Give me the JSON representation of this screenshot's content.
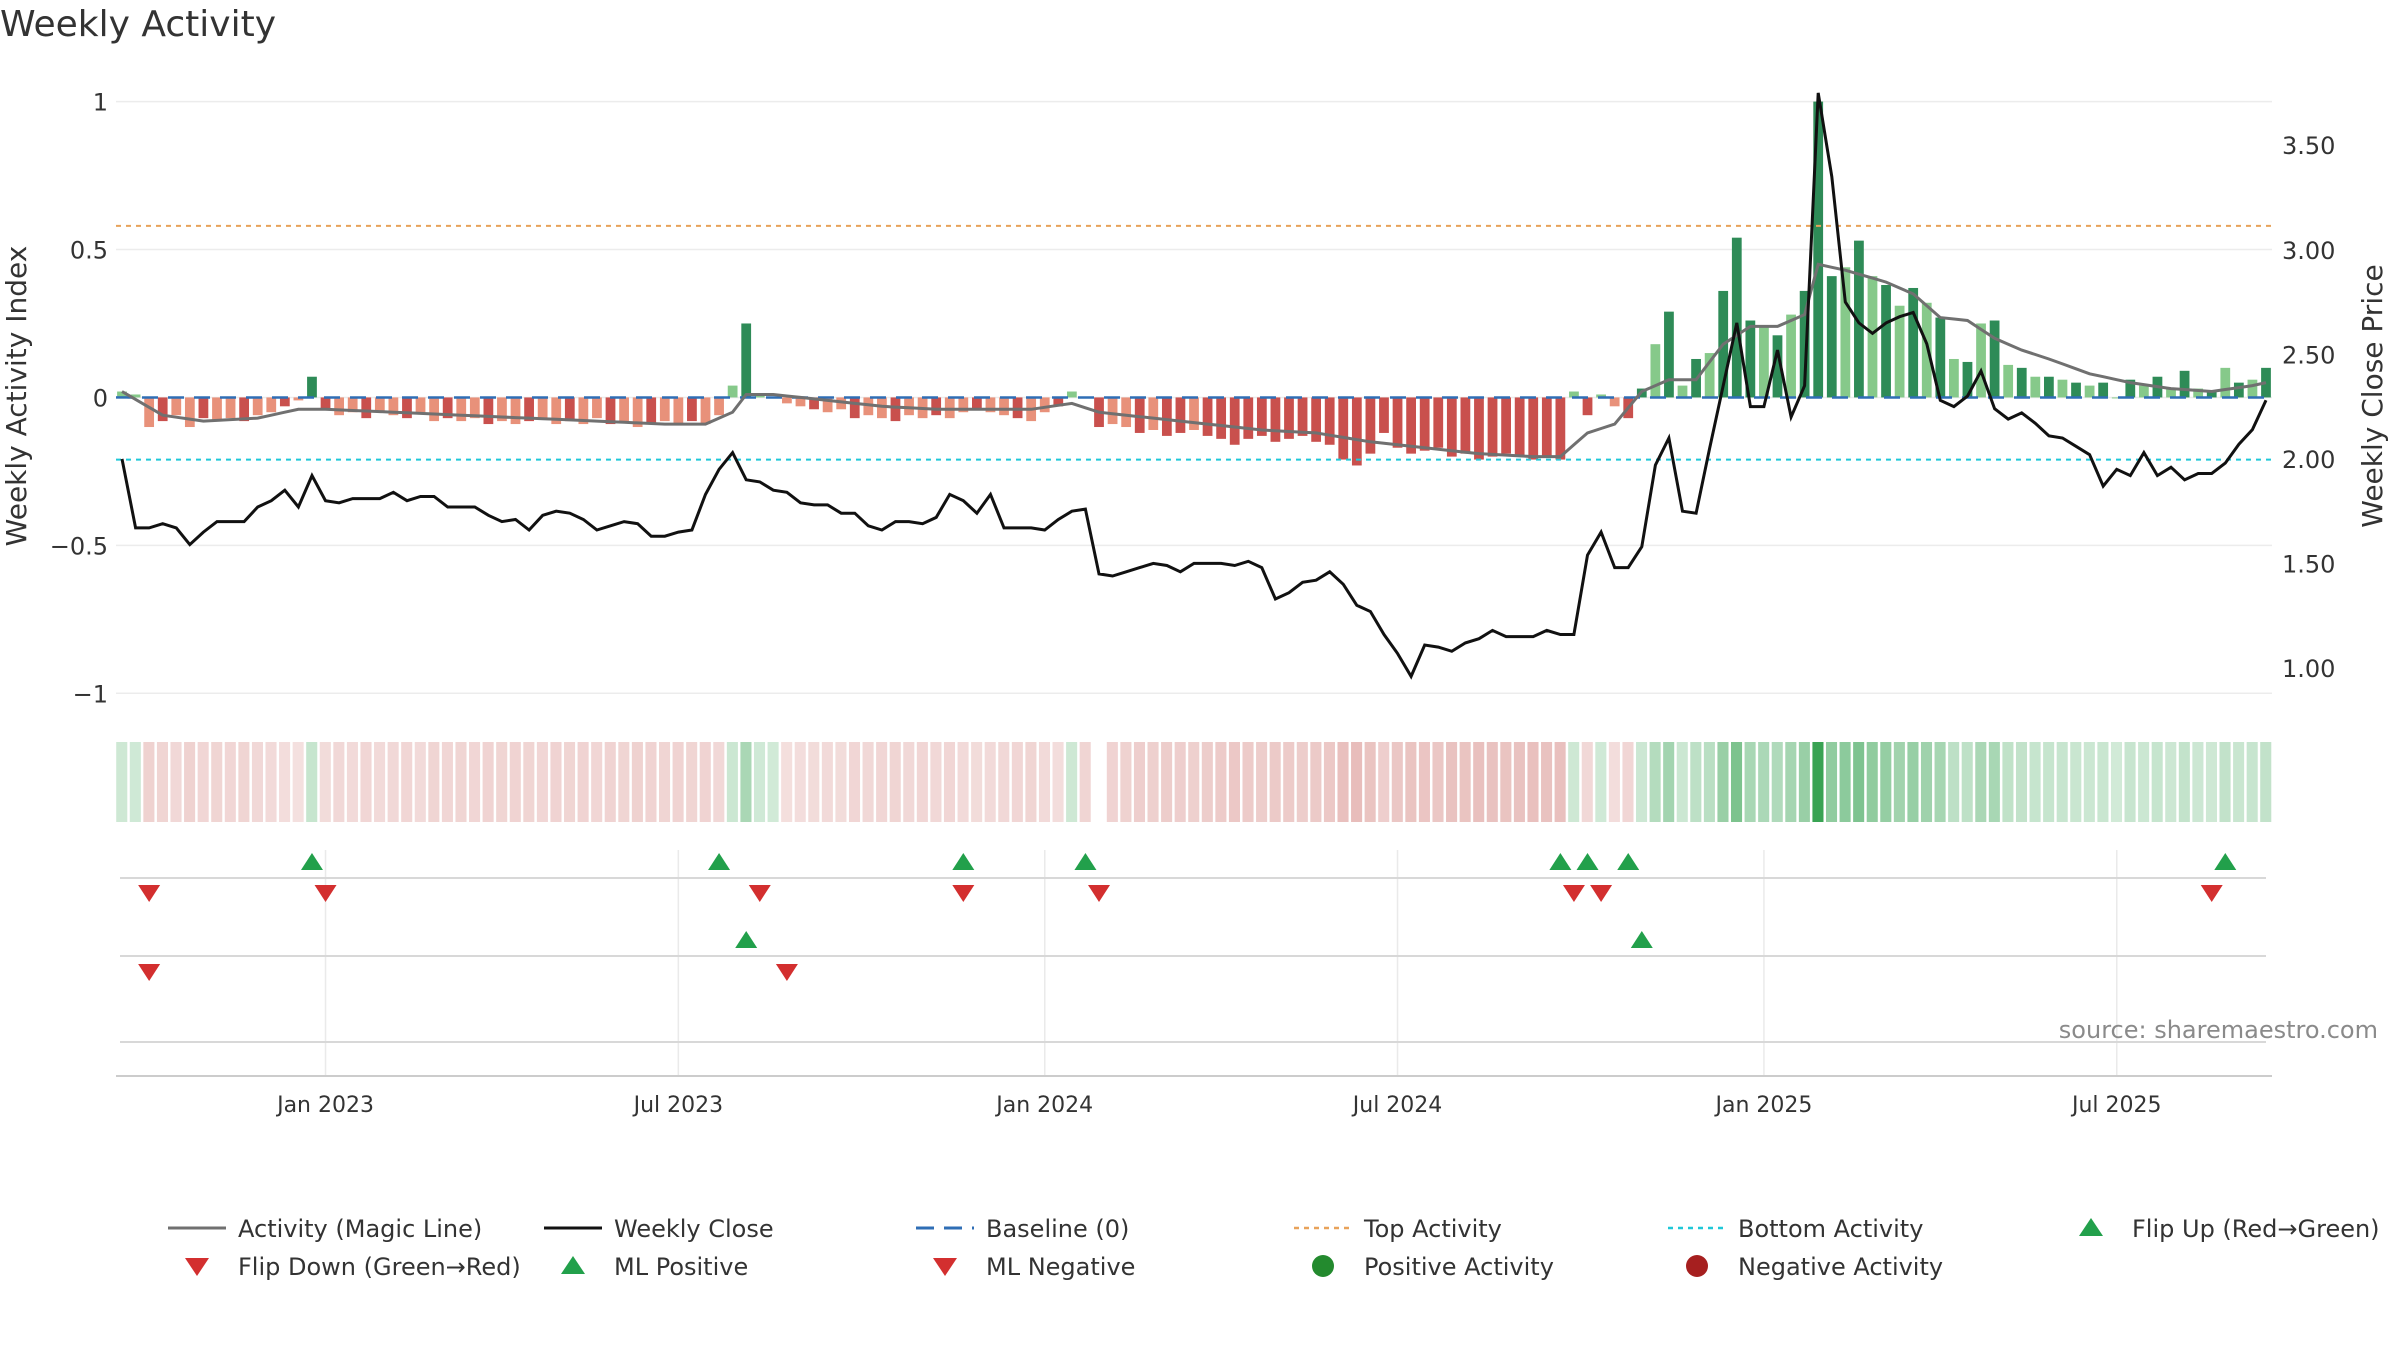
{
  "title": "Weekly Activity",
  "source": "source: sharemaestro.com",
  "colors": {
    "pos_dark": "#2e8b57",
    "pos_light": "#86c98a",
    "neg_dark": "#c9504d",
    "neg_light": "#e8917a",
    "magic": "#707070",
    "close": "#111111",
    "baseline": "#2f6eb5",
    "top": "#e8a25a",
    "bottom": "#1fc8d8",
    "up": "#22a04b",
    "down": "#d32f2f"
  },
  "chart_data": {
    "type": "bar",
    "title": "Weekly Activity",
    "y_left_label": "Weekly Activity Index",
    "y_right_label": "Weekly Close Price",
    "y_left_range": [
      -1.07,
      1.1
    ],
    "y_right_range": [
      0.78,
      3.85
    ],
    "y_left_ticks": [
      {
        "v": 1,
        "label": "1"
      },
      {
        "v": 0.5,
        "label": "0.5"
      },
      {
        "v": 0,
        "label": "0"
      },
      {
        "v": -0.5,
        "label": "−0.5"
      },
      {
        "v": -1,
        "label": "−1"
      }
    ],
    "y_right_ticks": [
      {
        "v": 3.5,
        "label": "3.50"
      },
      {
        "v": 3.0,
        "label": "3.00"
      },
      {
        "v": 2.5,
        "label": "2.50"
      },
      {
        "v": 2.0,
        "label": "2.00"
      },
      {
        "v": 1.5,
        "label": "1.50"
      },
      {
        "v": 1.0,
        "label": "1.00"
      }
    ],
    "x_range_weeks": [
      0,
      159
    ],
    "x_ticks": [
      {
        "week": 15,
        "label": "Jan 2023"
      },
      {
        "week": 41,
        "label": "Jul 2023"
      },
      {
        "week": 68,
        "label": "Jan 2024"
      },
      {
        "week": 94,
        "label": "Jul 2024"
      },
      {
        "week": 121,
        "label": "Jan 2025"
      },
      {
        "week": 147,
        "label": "Jul 2025"
      }
    ],
    "top_activity": 0.58,
    "bottom_activity": -0.21,
    "baseline": 0,
    "activity_knots": [
      [
        0,
        0.02
      ],
      [
        1,
        0.01
      ],
      [
        2,
        -0.1
      ],
      [
        3,
        -0.08
      ],
      [
        4,
        -0.06
      ],
      [
        5,
        -0.1
      ],
      [
        6,
        -0.07
      ],
      [
        7,
        -0.08
      ],
      [
        8,
        -0.07
      ],
      [
        9,
        -0.08
      ],
      [
        10,
        -0.06
      ],
      [
        11,
        -0.05
      ],
      [
        12,
        -0.03
      ],
      [
        13,
        -0.01
      ],
      [
        14,
        0.07
      ],
      [
        15,
        -0.04
      ],
      [
        16,
        -0.06
      ],
      [
        17,
        -0.05
      ],
      [
        18,
        -0.07
      ],
      [
        19,
        -0.05
      ],
      [
        20,
        -0.06
      ],
      [
        21,
        -0.07
      ],
      [
        22,
        -0.05
      ],
      [
        23,
        -0.08
      ],
      [
        24,
        -0.07
      ],
      [
        25,
        -0.08
      ],
      [
        26,
        -0.07
      ],
      [
        27,
        -0.09
      ],
      [
        28,
        -0.08
      ],
      [
        29,
        -0.09
      ],
      [
        30,
        -0.08
      ],
      [
        31,
        -0.07
      ],
      [
        32,
        -0.09
      ],
      [
        33,
        -0.08
      ],
      [
        34,
        -0.09
      ],
      [
        35,
        -0.07
      ],
      [
        36,
        -0.09
      ],
      [
        37,
        -0.08
      ],
      [
        38,
        -0.1
      ],
      [
        39,
        -0.09
      ],
      [
        40,
        -0.08
      ],
      [
        41,
        -0.09
      ],
      [
        42,
        -0.08
      ],
      [
        43,
        -0.09
      ],
      [
        44,
        -0.06
      ],
      [
        45,
        0.04
      ],
      [
        46,
        0.25
      ],
      [
        47,
        0.01
      ],
      [
        48,
        0.0
      ],
      [
        49,
        -0.02
      ],
      [
        50,
        -0.03
      ],
      [
        51,
        -0.04
      ],
      [
        52,
        -0.05
      ],
      [
        53,
        -0.04
      ],
      [
        54,
        -0.07
      ],
      [
        55,
        -0.06
      ],
      [
        56,
        -0.07
      ],
      [
        57,
        -0.08
      ],
      [
        58,
        -0.06
      ],
      [
        59,
        -0.07
      ],
      [
        60,
        -0.06
      ],
      [
        61,
        -0.07
      ],
      [
        62,
        -0.05
      ],
      [
        63,
        -0.04
      ],
      [
        64,
        -0.05
      ],
      [
        65,
        -0.06
      ],
      [
        66,
        -0.07
      ],
      [
        67,
        -0.08
      ],
      [
        68,
        -0.05
      ],
      [
        69,
        -0.03
      ],
      [
        70,
        0.02
      ],
      [
        71,
        -0.08
      ],
      [
        72,
        -0.1
      ],
      [
        73,
        -0.09
      ],
      [
        74,
        -0.1
      ],
      [
        75,
        -0.12
      ],
      [
        76,
        -0.11
      ],
      [
        77,
        -0.13
      ],
      [
        78,
        -0.12
      ],
      [
        79,
        -0.11
      ],
      [
        80,
        -0.13
      ],
      [
        81,
        -0.14
      ],
      [
        82,
        -0.16
      ],
      [
        83,
        -0.14
      ],
      [
        84,
        -0.13
      ],
      [
        85,
        -0.15
      ],
      [
        86,
        -0.14
      ],
      [
        87,
        -0.13
      ],
      [
        88,
        -0.15
      ],
      [
        89,
        -0.16
      ],
      [
        90,
        -0.21
      ],
      [
        91,
        -0.23
      ],
      [
        92,
        -0.19
      ],
      [
        93,
        -0.12
      ],
      [
        94,
        -0.17
      ],
      [
        95,
        -0.19
      ],
      [
        96,
        -0.18
      ],
      [
        97,
        -0.17
      ],
      [
        98,
        -0.2
      ],
      [
        99,
        -0.19
      ],
      [
        100,
        -0.21
      ],
      [
        101,
        -0.2
      ],
      [
        102,
        -0.19
      ],
      [
        103,
        -0.2
      ],
      [
        104,
        -0.21
      ],
      [
        105,
        -0.2
      ],
      [
        106,
        -0.21
      ],
      [
        107,
        0.02
      ],
      [
        108,
        -0.06
      ],
      [
        109,
        0.01
      ],
      [
        110,
        -0.03
      ],
      [
        111,
        -0.07
      ],
      [
        112,
        0.03
      ],
      [
        113,
        0.18
      ],
      [
        114,
        0.29
      ],
      [
        115,
        0.04
      ],
      [
        116,
        0.13
      ],
      [
        117,
        0.15
      ],
      [
        118,
        0.36
      ],
      [
        119,
        0.54
      ],
      [
        120,
        0.26
      ],
      [
        121,
        0.24
      ],
      [
        122,
        0.21
      ],
      [
        123,
        0.28
      ],
      [
        124,
        0.36
      ],
      [
        125,
        1.0
      ],
      [
        126,
        0.41
      ],
      [
        127,
        0.44
      ],
      [
        128,
        0.53
      ],
      [
        129,
        0.41
      ],
      [
        130,
        0.38
      ],
      [
        131,
        0.31
      ],
      [
        132,
        0.37
      ],
      [
        133,
        0.32
      ],
      [
        134,
        0.27
      ],
      [
        135,
        0.13
      ],
      [
        136,
        0.12
      ],
      [
        137,
        0.25
      ],
      [
        138,
        0.26
      ],
      [
        139,
        0.11
      ],
      [
        140,
        0.1
      ],
      [
        141,
        0.07
      ],
      [
        142,
        0.07
      ],
      [
        143,
        0.06
      ],
      [
        144,
        0.05
      ],
      [
        145,
        0.04
      ],
      [
        146,
        0.05
      ],
      [
        147,
        0.0
      ],
      [
        148,
        0.06
      ],
      [
        149,
        0.04
      ],
      [
        150,
        0.07
      ],
      [
        151,
        0.03
      ],
      [
        152,
        0.09
      ],
      [
        153,
        0.03
      ],
      [
        154,
        0.02
      ],
      [
        155,
        0.1
      ],
      [
        156,
        0.05
      ],
      [
        157,
        0.06
      ],
      [
        158,
        0.1
      ]
    ],
    "activity_gaps": [
      71
    ],
    "magic_knots": [
      [
        0,
        0.02
      ],
      [
        3,
        -0.06
      ],
      [
        6,
        -0.08
      ],
      [
        10,
        -0.07
      ],
      [
        13,
        -0.04
      ],
      [
        15,
        -0.04
      ],
      [
        20,
        -0.05
      ],
      [
        25,
        -0.06
      ],
      [
        30,
        -0.07
      ],
      [
        35,
        -0.08
      ],
      [
        40,
        -0.09
      ],
      [
        43,
        -0.09
      ],
      [
        45,
        -0.05
      ],
      [
        46,
        0.01
      ],
      [
        48,
        0.01
      ],
      [
        52,
        -0.01
      ],
      [
        56,
        -0.03
      ],
      [
        60,
        -0.04
      ],
      [
        64,
        -0.04
      ],
      [
        67,
        -0.04
      ],
      [
        70,
        -0.02
      ],
      [
        72,
        -0.05
      ],
      [
        76,
        -0.07
      ],
      [
        80,
        -0.09
      ],
      [
        84,
        -0.11
      ],
      [
        88,
        -0.12
      ],
      [
        92,
        -0.15
      ],
      [
        96,
        -0.17
      ],
      [
        100,
        -0.19
      ],
      [
        104,
        -0.2
      ],
      [
        106,
        -0.2
      ],
      [
        108,
        -0.12
      ],
      [
        110,
        -0.09
      ],
      [
        112,
        0.02
      ],
      [
        114,
        0.06
      ],
      [
        116,
        0.06
      ],
      [
        118,
        0.18
      ],
      [
        120,
        0.24
      ],
      [
        122,
        0.24
      ],
      [
        124,
        0.28
      ],
      [
        125,
        0.45
      ],
      [
        127,
        0.43
      ],
      [
        130,
        0.39
      ],
      [
        132,
        0.35
      ],
      [
        134,
        0.27
      ],
      [
        136,
        0.26
      ],
      [
        138,
        0.2
      ],
      [
        140,
        0.16
      ],
      [
        142,
        0.13
      ],
      [
        145,
        0.08
      ],
      [
        148,
        0.05
      ],
      [
        151,
        0.03
      ],
      [
        154,
        0.02
      ],
      [
        157,
        0.04
      ],
      [
        158,
        0.05
      ]
    ],
    "close_knots": [
      [
        0,
        2.0
      ],
      [
        1,
        1.67
      ],
      [
        2,
        1.67
      ],
      [
        3,
        1.69
      ],
      [
        4,
        1.67
      ],
      [
        5,
        1.59
      ],
      [
        6,
        1.65
      ],
      [
        7,
        1.7
      ],
      [
        8,
        1.7
      ],
      [
        9,
        1.7
      ],
      [
        10,
        1.77
      ],
      [
        11,
        1.8
      ],
      [
        12,
        1.85
      ],
      [
        13,
        1.77
      ],
      [
        14,
        1.92
      ],
      [
        15,
        1.8
      ],
      [
        16,
        1.79
      ],
      [
        17,
        1.81
      ],
      [
        18,
        1.81
      ],
      [
        19,
        1.81
      ],
      [
        20,
        1.84
      ],
      [
        21,
        1.8
      ],
      [
        22,
        1.82
      ],
      [
        23,
        1.82
      ],
      [
        24,
        1.77
      ],
      [
        25,
        1.77
      ],
      [
        26,
        1.77
      ],
      [
        27,
        1.73
      ],
      [
        28,
        1.7
      ],
      [
        29,
        1.71
      ],
      [
        30,
        1.66
      ],
      [
        31,
        1.73
      ],
      [
        32,
        1.75
      ],
      [
        33,
        1.74
      ],
      [
        34,
        1.71
      ],
      [
        35,
        1.66
      ],
      [
        36,
        1.68
      ],
      [
        37,
        1.7
      ],
      [
        38,
        1.69
      ],
      [
        39,
        1.63
      ],
      [
        40,
        1.63
      ],
      [
        41,
        1.65
      ],
      [
        42,
        1.66
      ],
      [
        43,
        1.83
      ],
      [
        44,
        1.95
      ],
      [
        45,
        2.03
      ],
      [
        46,
        1.9
      ],
      [
        47,
        1.89
      ],
      [
        48,
        1.85
      ],
      [
        49,
        1.84
      ],
      [
        50,
        1.79
      ],
      [
        51,
        1.78
      ],
      [
        52,
        1.78
      ],
      [
        53,
        1.74
      ],
      [
        54,
        1.74
      ],
      [
        55,
        1.68
      ],
      [
        56,
        1.66
      ],
      [
        57,
        1.7
      ],
      [
        58,
        1.7
      ],
      [
        59,
        1.69
      ],
      [
        60,
        1.72
      ],
      [
        61,
        1.83
      ],
      [
        62,
        1.8
      ],
      [
        63,
        1.74
      ],
      [
        64,
        1.83
      ],
      [
        65,
        1.67
      ],
      [
        66,
        1.67
      ],
      [
        67,
        1.67
      ],
      [
        68,
        1.66
      ],
      [
        69,
        1.71
      ],
      [
        70,
        1.75
      ],
      [
        71,
        1.76
      ],
      [
        72,
        1.45
      ],
      [
        73,
        1.44
      ],
      [
        74,
        1.46
      ],
      [
        75,
        1.48
      ],
      [
        76,
        1.5
      ],
      [
        77,
        1.49
      ],
      [
        78,
        1.46
      ],
      [
        79,
        1.5
      ],
      [
        80,
        1.5
      ],
      [
        81,
        1.5
      ],
      [
        82,
        1.49
      ],
      [
        83,
        1.51
      ],
      [
        84,
        1.48
      ],
      [
        85,
        1.33
      ],
      [
        86,
        1.36
      ],
      [
        87,
        1.41
      ],
      [
        88,
        1.42
      ],
      [
        89,
        1.46
      ],
      [
        90,
        1.4
      ],
      [
        91,
        1.3
      ],
      [
        92,
        1.27
      ],
      [
        93,
        1.16
      ],
      [
        94,
        1.07
      ],
      [
        95,
        0.96
      ],
      [
        96,
        1.11
      ],
      [
        97,
        1.1
      ],
      [
        98,
        1.08
      ],
      [
        99,
        1.12
      ],
      [
        100,
        1.14
      ],
      [
        101,
        1.18
      ],
      [
        102,
        1.15
      ],
      [
        103,
        1.15
      ],
      [
        104,
        1.15
      ],
      [
        105,
        1.18
      ],
      [
        106,
        1.16
      ],
      [
        107,
        1.16
      ],
      [
        108,
        1.54
      ],
      [
        109,
        1.65
      ],
      [
        110,
        1.48
      ],
      [
        111,
        1.48
      ],
      [
        112,
        1.58
      ],
      [
        113,
        1.97
      ],
      [
        114,
        2.1
      ],
      [
        115,
        1.75
      ],
      [
        116,
        1.74
      ],
      [
        117,
        2.05
      ],
      [
        118,
        2.35
      ],
      [
        119,
        2.65
      ],
      [
        120,
        2.25
      ],
      [
        121,
        2.25
      ],
      [
        122,
        2.52
      ],
      [
        123,
        2.2
      ],
      [
        124,
        2.35
      ],
      [
        125,
        3.75
      ],
      [
        126,
        3.35
      ],
      [
        127,
        2.75
      ],
      [
        128,
        2.65
      ],
      [
        129,
        2.6
      ],
      [
        130,
        2.65
      ],
      [
        131,
        2.68
      ],
      [
        132,
        2.7
      ],
      [
        133,
        2.55
      ],
      [
        134,
        2.28
      ],
      [
        135,
        2.25
      ],
      [
        136,
        2.3
      ],
      [
        137,
        2.42
      ],
      [
        138,
        2.24
      ],
      [
        139,
        2.19
      ],
      [
        140,
        2.22
      ],
      [
        141,
        2.17
      ],
      [
        142,
        2.11
      ],
      [
        143,
        2.1
      ],
      [
        144,
        2.06
      ],
      [
        145,
        2.02
      ],
      [
        146,
        1.87
      ],
      [
        147,
        1.95
      ],
      [
        148,
        1.92
      ],
      [
        149,
        2.03
      ],
      [
        150,
        1.92
      ],
      [
        151,
        1.96
      ],
      [
        152,
        1.9
      ],
      [
        153,
        1.93
      ],
      [
        154,
        1.93
      ],
      [
        155,
        1.98
      ],
      [
        156,
        2.07
      ],
      [
        157,
        2.14
      ],
      [
        158,
        2.28
      ]
    ],
    "shade_gaps": [
      72
    ],
    "flip_up_weeks": [
      14,
      44,
      62,
      71,
      106,
      108,
      111,
      155
    ],
    "flip_down_weeks": [
      2,
      15,
      47,
      62,
      72,
      107,
      109,
      154
    ],
    "ml_positive_weeks": [
      46,
      112
    ],
    "ml_negative_weeks": [
      2,
      49
    ],
    "legend": [
      {
        "key": "magic",
        "label": "Activity (Magic Line)"
      },
      {
        "key": "close",
        "label": "Weekly Close"
      },
      {
        "key": "baseline",
        "label": "Baseline (0)"
      },
      {
        "key": "top",
        "label": "Top Activity"
      },
      {
        "key": "bottom",
        "label": "Bottom Activity"
      },
      {
        "key": "flipup",
        "label": "Flip Up (Red→Green)"
      },
      {
        "key": "flipdown",
        "label": "Flip Down (Green→Red)"
      },
      {
        "key": "mlpos",
        "label": "ML Positive"
      },
      {
        "key": "mlneg",
        "label": "ML Negative"
      },
      {
        "key": "posact",
        "label": "Positive Activity"
      },
      {
        "key": "negact",
        "label": "Negative Activity"
      }
    ]
  }
}
